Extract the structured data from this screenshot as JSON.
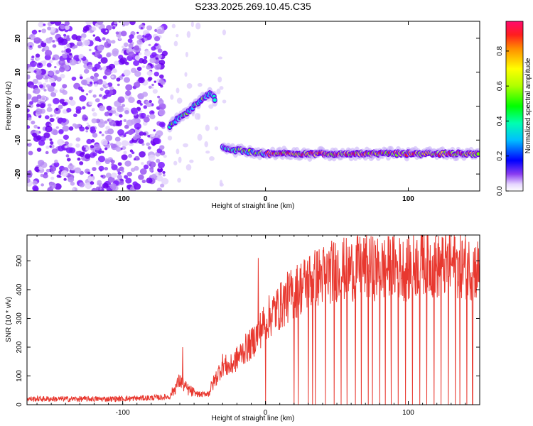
{
  "title": "S233.2025.269.10.45.C35",
  "chart_data": [
    {
      "type": "heatmap",
      "xlabel": "Height of straight line (km)",
      "ylabel": "Frequency (Hz)",
      "xlim": [
        -167,
        150
      ],
      "ylim": [
        -25,
        25
      ],
      "x_ticks": [
        "-100",
        "0",
        "100"
      ],
      "y_ticks": [
        "-20",
        "-10",
        "0",
        "10",
        "20"
      ],
      "colorbar": {
        "label": "Normalized spectral amplitude",
        "range": [
          0,
          0.97
        ],
        "ticks": [
          "0.0",
          "0.2",
          "0.4",
          "0.6",
          "0.8"
        ],
        "colormap": "rainbow"
      },
      "ridge": [
        {
          "x": -67,
          "y": -6
        },
        {
          "x": -62,
          "y": -4
        },
        {
          "x": -55,
          "y": -2
        },
        {
          "x": -50,
          "y": 0
        },
        {
          "x": -45,
          "y": 2
        },
        {
          "x": -40,
          "y": 3.5
        },
        {
          "x": -36,
          "y": 3
        },
        {
          "x": -35,
          "y": 0
        },
        {
          "x": -30,
          "y": -12
        },
        {
          "x": -20,
          "y": -13
        },
        {
          "x": 0,
          "y": -14
        },
        {
          "x": 50,
          "y": -14
        },
        {
          "x": 100,
          "y": -14
        },
        {
          "x": 150,
          "y": -14
        }
      ]
    },
    {
      "type": "line",
      "xlabel": "Height of straight line (km)",
      "ylabel": "SNR (10 * v/v)",
      "xlim": [
        -167,
        150
      ],
      "ylim": [
        0,
        590
      ],
      "x_ticks": [
        "-100",
        "0",
        "100"
      ],
      "y_ticks": [
        "0",
        "100",
        "200",
        "300",
        "400",
        "500"
      ],
      "series": [
        {
          "color": "#e8382f",
          "x": [
            -167,
            -140,
            -110,
            -90,
            -75,
            -67,
            -60,
            -55,
            -50,
            -45,
            -40,
            -35,
            -30,
            -25,
            -20,
            -15,
            -10,
            -5,
            0,
            5,
            10,
            15,
            20,
            25,
            30,
            35,
            40,
            45,
            50,
            60,
            70,
            80,
            90,
            100,
            110,
            120,
            130,
            140,
            150
          ],
          "values": [
            20,
            20,
            20,
            22,
            25,
            28,
            85,
            55,
            40,
            35,
            40,
            90,
            140,
            130,
            160,
            190,
            210,
            250,
            290,
            320,
            340,
            370,
            390,
            410,
            430,
            440,
            450,
            460,
            470,
            470,
            480,
            470,
            480,
            470,
            500,
            480,
            490,
            480,
            470
          ]
        }
      ],
      "spikes_up": [
        {
          "x": -5,
          "value": 510
        },
        {
          "x": 110,
          "value": 590
        },
        {
          "x": -58,
          "value": 200
        }
      ],
      "dropouts_to_zero_x": [
        0,
        20,
        23,
        30,
        33,
        35,
        42,
        48,
        53,
        57,
        63,
        67,
        72,
        75,
        80,
        84,
        88,
        93,
        98,
        103,
        108,
        113,
        118,
        123,
        128,
        133,
        136,
        141,
        145
      ]
    }
  ]
}
